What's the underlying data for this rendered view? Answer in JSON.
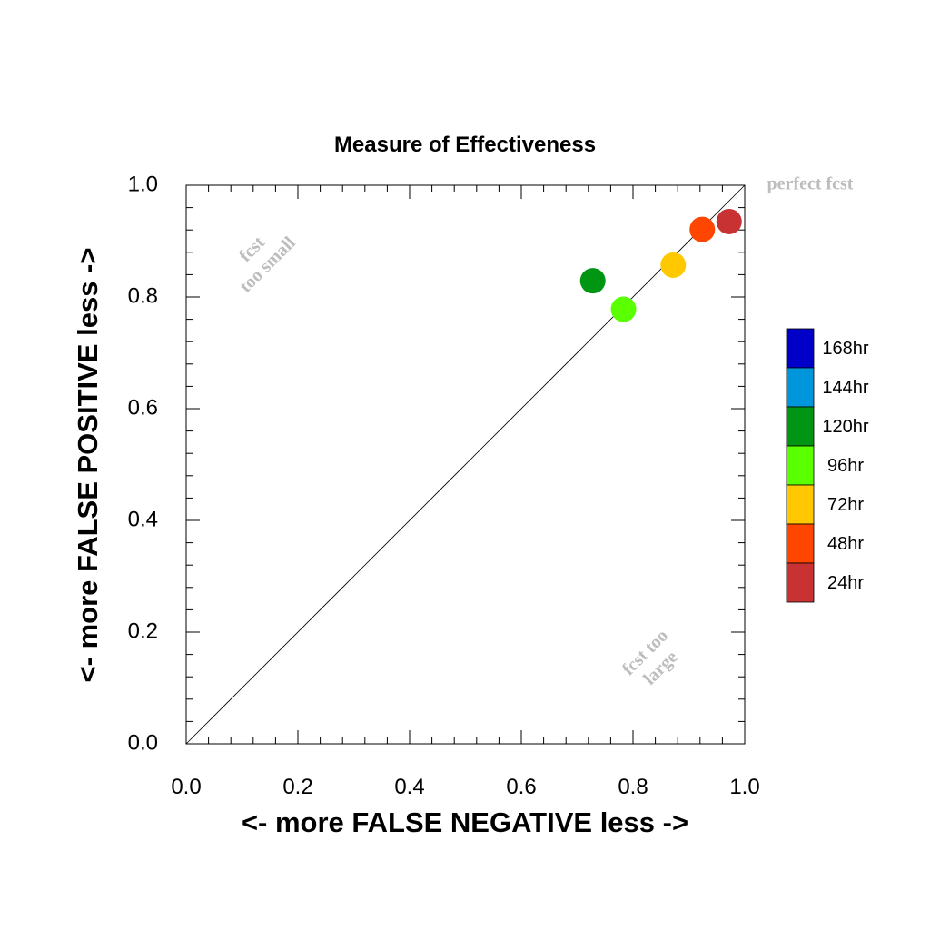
{
  "chart_data": {
    "type": "scatter",
    "title": "Measure of Effectiveness",
    "xlabel": "<- more   FALSE NEGATIVE   less ->",
    "ylabel": "<- more   FALSE POSITIVE   less ->",
    "xlim": [
      0.0,
      1.0
    ],
    "ylim": [
      0.0,
      1.0
    ],
    "xticks": [
      "0.0",
      "0.2",
      "0.4",
      "0.6",
      "0.8",
      "1.0"
    ],
    "yticks": [
      "0.0",
      "0.2",
      "0.4",
      "0.6",
      "0.8",
      "1.0"
    ],
    "grid": false,
    "reference_line": {
      "from": [
        0.0,
        0.0
      ],
      "to": [
        1.0,
        1.0
      ]
    },
    "annotations": {
      "perfect": "perfect fcst",
      "too_small_1": "fcst",
      "too_small_2": "too small",
      "too_large_1": "fcst too",
      "too_large_2": "large"
    },
    "legend": {
      "placement": "right",
      "entries": [
        {
          "label": "168hr",
          "color": "#0000c8"
        },
        {
          "label": "144hr",
          "color": "#0096dc"
        },
        {
          "label": "120hr",
          "color": "#009614"
        },
        {
          "label": "96hr",
          "color": "#5aff00"
        },
        {
          "label": "72hr",
          "color": "#ffc800"
        },
        {
          "label": "48hr",
          "color": "#ff4600"
        },
        {
          "label": "24hr",
          "color": "#c83232"
        }
      ]
    },
    "series": [
      {
        "name": "120hr",
        "x": [
          0.728
        ],
        "y": [
          0.829
        ],
        "color": "#009614"
      },
      {
        "name": "96hr",
        "x": [
          0.783
        ],
        "y": [
          0.778
        ],
        "color": "#5aff00"
      },
      {
        "name": "72hr",
        "x": [
          0.872
        ],
        "y": [
          0.857
        ],
        "color": "#ffc800"
      },
      {
        "name": "48hr",
        "x": [
          0.924
        ],
        "y": [
          0.921
        ],
        "color": "#ff4600"
      },
      {
        "name": "24hr",
        "x": [
          0.972
        ],
        "y": [
          0.935
        ],
        "color": "#c83232"
      }
    ]
  }
}
